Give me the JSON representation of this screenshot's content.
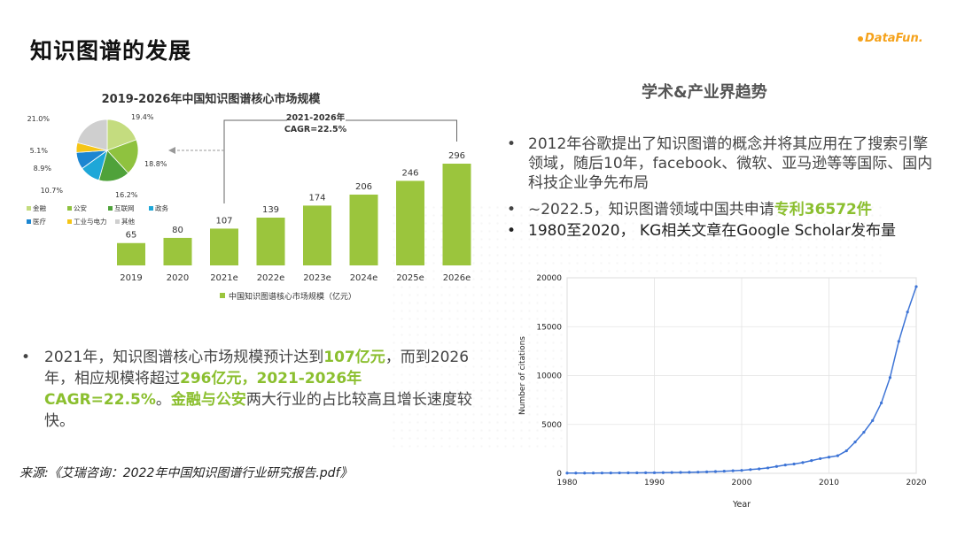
{
  "slide": {
    "title": "知识图谱的发展",
    "logo_text": "DataFun."
  },
  "left": {
    "bullet_dot": "•",
    "bullet": [
      {
        "text": "2021年，知识图谱核心市场规模预计达到",
        "hl": false
      },
      {
        "text": "107亿元",
        "hl": true
      },
      {
        "text": "，而到2026年，相应规模将超过",
        "hl": false
      },
      {
        "text": "296亿元，2021-2026年CAGR=22.5%",
        "hl": true
      },
      {
        "text": "。",
        "hl": false
      },
      {
        "text": "金融与公安",
        "hl": true
      },
      {
        "text": "两大行业的占比较高且增长速度较快。",
        "hl": false
      }
    ],
    "source": "来源:《艾瑞咨询：2022年中国知识图谱行业研究报告.pdf》"
  },
  "right": {
    "heading": "学术&产业界趋势",
    "bullet_dot": "•",
    "bullet1": "2012年谷歌提出了知识图谱的概念并将其应用在了搜索引擎领域，随后10年，facebook、微软、亚马逊等等国际、国内科技企业争先布局",
    "bullet2_pre": "~2022.5，知识图谱领域中国共申请",
    "bullet2_hl": "专利36572件",
    "bullet3": "1980至2020， KG相关文章在Google Scholar发布量"
  },
  "chart_data": [
    {
      "type": "bar",
      "title": "2019-2026年中国知识图谱核心市场规模",
      "categories": [
        "2019",
        "2020",
        "2021e",
        "2022e",
        "2023e",
        "2024e",
        "2025e",
        "2026e"
      ],
      "series": [
        {
          "name": "中国知识图谱核心市场规模（亿元）",
          "values": [
            65,
            80,
            107,
            139,
            174,
            206,
            246,
            296
          ]
        }
      ],
      "annotation": [
        "2021-2026年",
        "CAGR=22.5%"
      ],
      "ylim": [
        0,
        300
      ],
      "bar_color": "#9bc53d"
    },
    {
      "type": "pie",
      "labels": [
        "金融",
        "公安",
        "互联网",
        "政务",
        "医疗",
        "工业与电力",
        "其他"
      ],
      "values": [
        19.4,
        18.8,
        16.2,
        10.7,
        8.9,
        5.1,
        21.0
      ],
      "value_labels": [
        "19.4%",
        "18.8%",
        "16.2%",
        "10.7%",
        "8.9%",
        "5.1%",
        "21.0%"
      ],
      "colors": [
        "#c4dc7f",
        "#8fc23f",
        "#4fa23a",
        "#1ea7d8",
        "#1c86d1",
        "#f5c516",
        "#cfcfcf"
      ]
    },
    {
      "type": "line",
      "xlabel": "Year",
      "ylabel": "Number of citations",
      "xlim": [
        1980,
        2020
      ],
      "ylim": [
        0,
        20000
      ],
      "xticks": [
        "1980",
        "1990",
        "2000",
        "2010",
        "2020"
      ],
      "yticks": [
        "0",
        "5000",
        "10000",
        "15000",
        "20000"
      ],
      "grid": true,
      "line_color": "#3d74d6",
      "x": [
        1980,
        1981,
        1982,
        1983,
        1984,
        1985,
        1986,
        1987,
        1988,
        1989,
        1990,
        1991,
        1992,
        1993,
        1994,
        1995,
        1996,
        1997,
        1998,
        1999,
        2000,
        2001,
        2002,
        2003,
        2004,
        2005,
        2006,
        2007,
        2008,
        2009,
        2010,
        2011,
        2012,
        2013,
        2014,
        2015,
        2016,
        2017,
        2018,
        2019,
        2020
      ],
      "y": [
        20,
        22,
        25,
        28,
        30,
        35,
        40,
        45,
        50,
        55,
        60,
        70,
        80,
        90,
        100,
        120,
        150,
        180,
        220,
        260,
        300,
        380,
        450,
        550,
        700,
        850,
        950,
        1100,
        1300,
        1500,
        1650,
        1800,
        2300,
        3200,
        4200,
        5400,
        7200,
        9800,
        13500,
        16500,
        19100
      ]
    }
  ]
}
